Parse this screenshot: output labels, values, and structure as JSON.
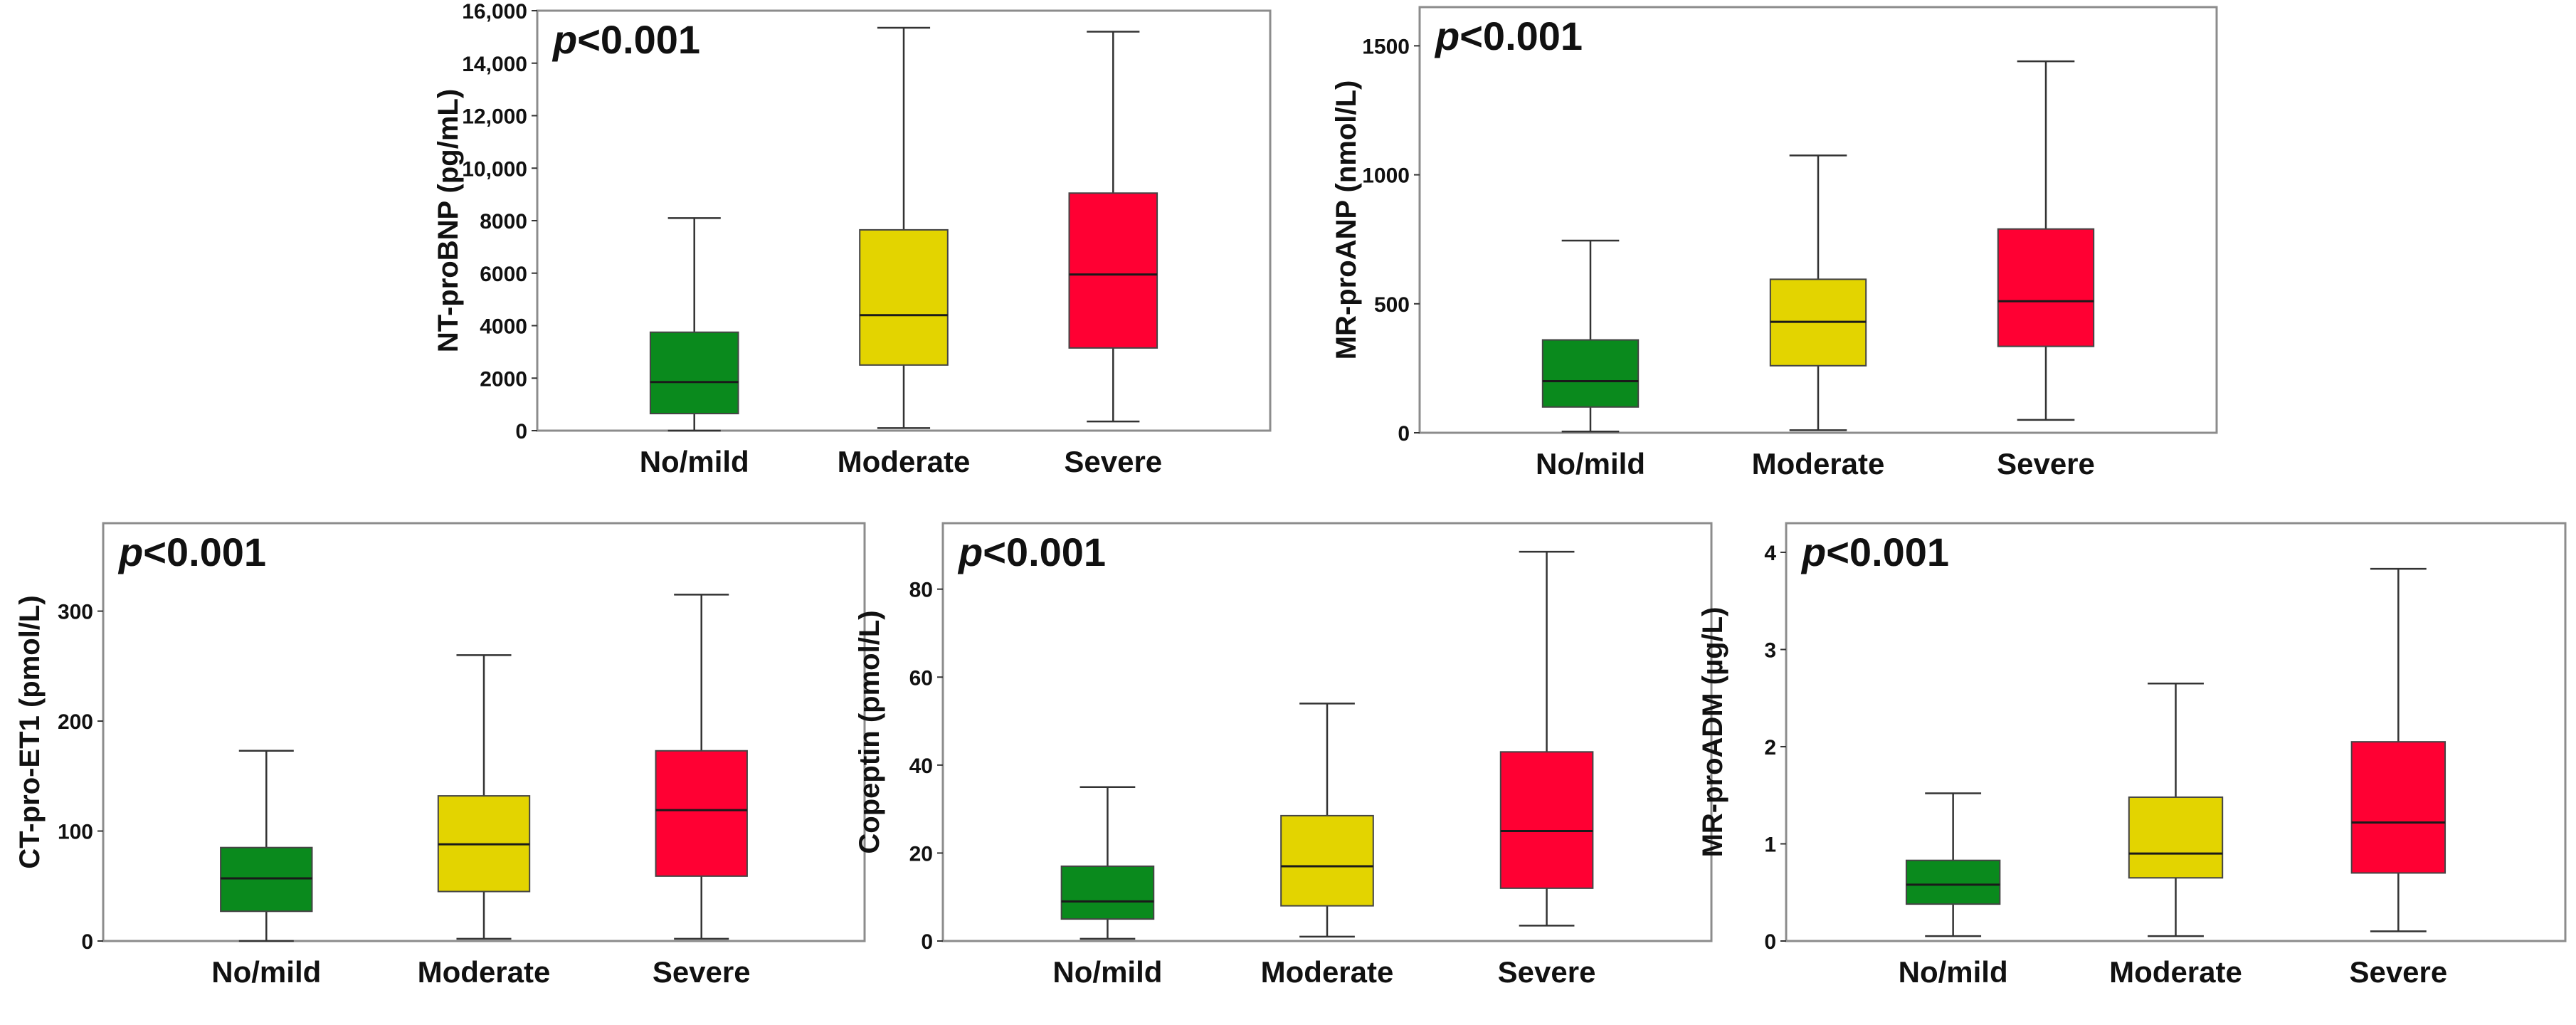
{
  "chart_data": [
    {
      "type": "box",
      "annotation": {
        "p_symbol": "p",
        "p_text": "<0.001"
      },
      "ylabel": "NT-proBNP (pg/mL)",
      "ylim": [
        0,
        16000
      ],
      "yticks": [
        0,
        2000,
        4000,
        6000,
        8000,
        10000,
        12000,
        14000,
        16000
      ],
      "ytick_labels": [
        "0",
        "2000",
        "4000",
        "6000",
        "8000",
        "10,000",
        "12,000",
        "14,000",
        "16,000"
      ],
      "categories": [
        "No/mild",
        "Moderate",
        "Severe"
      ],
      "boxes": [
        {
          "min": 0,
          "q1": 650,
          "median": 1850,
          "q3": 3750,
          "max": 8100
        },
        {
          "min": 100,
          "q1": 2500,
          "median": 4400,
          "q3": 7650,
          "max": 15350
        },
        {
          "min": 350,
          "q1": 3150,
          "median": 5950,
          "q3": 9050,
          "max": 15200
        }
      ]
    },
    {
      "type": "box",
      "annotation": {
        "p_symbol": "p",
        "p_text": "<0.001"
      },
      "ylabel": "MR-proANP (nmol/L)",
      "ylim": [
        0,
        1650
      ],
      "yticks": [
        0,
        500,
        1000,
        1500
      ],
      "ytick_labels": [
        "0",
        "500",
        "1000",
        "1500"
      ],
      "categories": [
        "No/mild",
        "Moderate",
        "Severe"
      ],
      "boxes": [
        {
          "min": 5,
          "q1": 100,
          "median": 200,
          "q3": 360,
          "max": 745
        },
        {
          "min": 10,
          "q1": 260,
          "median": 430,
          "q3": 595,
          "max": 1075
        },
        {
          "min": 50,
          "q1": 335,
          "median": 510,
          "q3": 790,
          "max": 1440
        }
      ]
    },
    {
      "type": "box",
      "annotation": {
        "p_symbol": "p",
        "p_text": "<0.001"
      },
      "ylabel": "CT-pro-ET1 (pmol/L)",
      "ylim": [
        0,
        380
      ],
      "yticks": [
        0,
        100,
        200,
        300
      ],
      "ytick_labels": [
        "0",
        "100",
        "200",
        "300"
      ],
      "categories": [
        "No/mild",
        "Moderate",
        "Severe"
      ],
      "boxes": [
        {
          "min": 0,
          "q1": 27,
          "median": 57,
          "q3": 85,
          "max": 173
        },
        {
          "min": 2,
          "q1": 45,
          "median": 88,
          "q3": 132,
          "max": 260
        },
        {
          "min": 2,
          "q1": 59,
          "median": 119,
          "q3": 173,
          "max": 315
        }
      ]
    },
    {
      "type": "box",
      "annotation": {
        "p_symbol": "p",
        "p_text": "<0.001"
      },
      "ylabel": "Copeptin (pmol/L)",
      "ylim": [
        0,
        95
      ],
      "yticks": [
        0,
        20,
        40,
        60,
        80
      ],
      "ytick_labels": [
        "0",
        "20",
        "40",
        "60",
        "80"
      ],
      "categories": [
        "No/mild",
        "Moderate",
        "Severe"
      ],
      "boxes": [
        {
          "min": 0.5,
          "q1": 5,
          "median": 9,
          "q3": 17,
          "max": 35
        },
        {
          "min": 1,
          "q1": 8,
          "median": 17,
          "q3": 28.5,
          "max": 54
        },
        {
          "min": 3.5,
          "q1": 12,
          "median": 25,
          "q3": 43,
          "max": 88.5
        }
      ]
    },
    {
      "type": "box",
      "annotation": {
        "p_symbol": "p",
        "p_text": "<0.001"
      },
      "ylabel": "MR-proADM (µg/L)",
      "ylim": [
        0,
        4.3
      ],
      "yticks": [
        0,
        1,
        2,
        3,
        4
      ],
      "ytick_labels": [
        "0",
        "1",
        "2",
        "3",
        "4"
      ],
      "categories": [
        "No/mild",
        "Moderate",
        "Severe"
      ],
      "boxes": [
        {
          "min": 0.05,
          "q1": 0.38,
          "median": 0.58,
          "q3": 0.83,
          "max": 1.52
        },
        {
          "min": 0.05,
          "q1": 0.65,
          "median": 0.9,
          "q3": 1.48,
          "max": 2.65
        },
        {
          "min": 0.1,
          "q1": 0.7,
          "median": 1.22,
          "q3": 2.05,
          "max": 3.83
        }
      ]
    }
  ],
  "colors": {
    "category_fill": [
      "#0a8a1d",
      "#e3d400",
      "#ff0033"
    ],
    "median_line": "#1a1a1a",
    "whisker": "#333333",
    "frame": "#8c8c8c",
    "text": "#111111"
  }
}
